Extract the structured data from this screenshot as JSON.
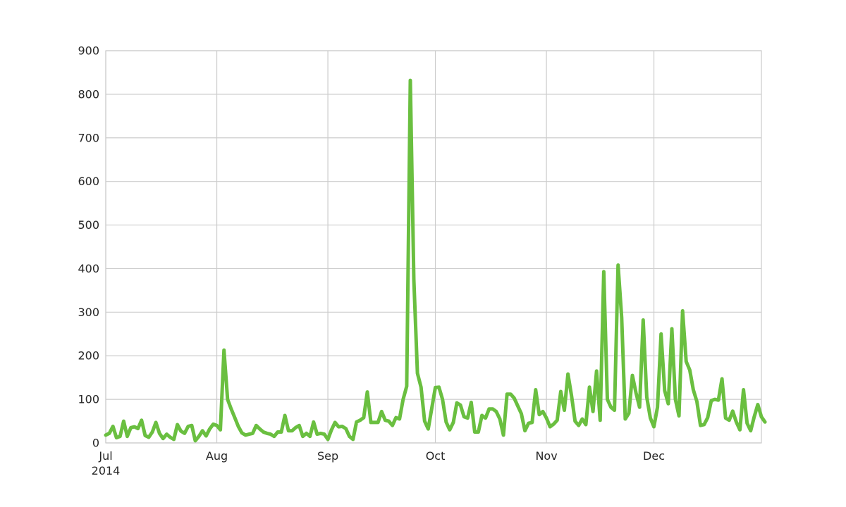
{
  "chart_data": {
    "type": "line",
    "title": "",
    "xlabel": "",
    "ylabel": "",
    "x_start": "2014-07-01",
    "x_end": "2014-12-31",
    "xlim": [
      "2014-07-01",
      "2014-12-31"
    ],
    "ylim": [
      0,
      900
    ],
    "yticks": [
      0,
      100,
      200,
      300,
      400,
      500,
      600,
      700,
      800,
      900
    ],
    "xticks": [
      {
        "date": "2014-07-01",
        "label": "Jul",
        "sublabel": "2014"
      },
      {
        "date": "2014-08-01",
        "label": "Aug"
      },
      {
        "date": "2014-09-01",
        "label": "Sep"
      },
      {
        "date": "2014-10-01",
        "label": "Oct"
      },
      {
        "date": "2014-11-01",
        "label": "Nov"
      },
      {
        "date": "2014-12-01",
        "label": "Dec"
      }
    ],
    "grid": true,
    "legend": "none",
    "series": [
      {
        "color": "#6abf40",
        "frequency": "daily",
        "values": [
          18,
          22,
          38,
          12,
          15,
          50,
          15,
          35,
          37,
          33,
          52,
          17,
          13,
          25,
          47,
          22,
          10,
          20,
          13,
          8,
          42,
          27,
          22,
          38,
          40,
          5,
          15,
          28,
          16,
          32,
          43,
          40,
          30,
          213,
          100,
          78,
          58,
          38,
          23,
          18,
          20,
          22,
          40,
          32,
          25,
          22,
          20,
          15,
          25,
          25,
          63,
          28,
          28,
          35,
          40,
          15,
          22,
          15,
          48,
          20,
          22,
          20,
          8,
          30,
          47,
          37,
          38,
          33,
          15,
          8,
          48,
          52,
          58,
          117,
          47,
          47,
          47,
          72,
          52,
          50,
          40,
          58,
          55,
          100,
          130,
          832,
          375,
          160,
          128,
          50,
          32,
          80,
          127,
          128,
          100,
          48,
          30,
          47,
          92,
          87,
          60,
          57,
          93,
          25,
          25,
          63,
          57,
          78,
          78,
          72,
          55,
          18,
          112,
          112,
          103,
          85,
          67,
          28,
          45,
          47,
          122,
          65,
          72,
          57,
          37,
          43,
          52,
          118,
          75,
          158,
          108,
          50,
          40,
          55,
          42,
          128,
          72,
          165,
          52,
          393,
          100,
          82,
          75,
          408,
          288,
          55,
          68,
          155,
          115,
          82,
          282,
          105,
          57,
          37,
          82,
          250,
          120,
          90,
          262,
          100,
          62,
          303,
          187,
          167,
          122,
          95,
          40,
          42,
          58,
          97,
          100,
          98,
          147,
          57,
          52,
          73,
          48,
          30,
          122,
          45,
          28,
          60,
          88,
          60,
          48
        ]
      }
    ]
  }
}
